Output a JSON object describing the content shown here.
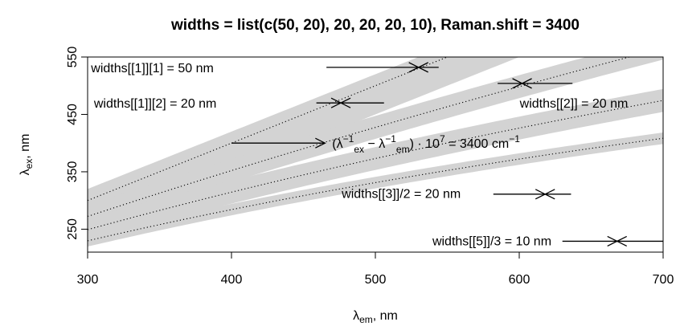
{
  "chart_data": {
    "type": "area",
    "title": "widths = list(c(50, 20), 20, 20, 20, 10), Raman.shift = 3400",
    "xlabel": {
      "main": "λ",
      "sub": "em",
      "unit": ", nm"
    },
    "ylabel": {
      "main": "λ",
      "sub": "ex",
      "unit": ", nm"
    },
    "xlim": [
      300,
      700
    ],
    "ylim": [
      210,
      550
    ],
    "x_ticks": [
      300,
      400,
      500,
      600,
      700
    ],
    "y_ticks": [
      250,
      350,
      450,
      550
    ],
    "raman_shift": 3400,
    "bands": [
      {
        "center_offset": 0,
        "lower_width": 50,
        "upper_width": 20,
        "color": "#d3d3d3"
      },
      {
        "center_offset": 3400,
        "width": 20,
        "color": "#d3d3d3"
      },
      {
        "center_offset": 6800,
        "width": 20,
        "color": "#d3d3d3"
      },
      {
        "center_offset": 10200,
        "width": 10,
        "color": "#d3d3d3"
      }
    ],
    "centerlines": [
      {
        "shift": 0,
        "style": "dotted"
      },
      {
        "shift": 3400,
        "style": "dotted"
      },
      {
        "shift": 6800,
        "style": "dotted"
      },
      {
        "shift": 10200,
        "style": "dotted"
      }
    ],
    "annotations": [
      {
        "text": "widths[[1]][1] =  50 nm",
        "x": 345,
        "y": 532,
        "anchor": "middle"
      },
      {
        "text": "widths[[1]][2] = 20 nm",
        "x": 347,
        "y": 470,
        "anchor": "middle"
      },
      {
        "text": "widths[[2]] = 20 nm",
        "x": 638,
        "y": 470,
        "anchor": "middle"
      },
      {
        "text": "widths[[3]]/2 = 20 nm",
        "x": 518,
        "y": 313,
        "anchor": "middle"
      },
      {
        "text": "widths[[5]]/3 = 10 nm",
        "x": 581,
        "y": 230,
        "anchor": "middle"
      }
    ],
    "formula": {
      "prefix": "(λ",
      "ex_sub": "ex",
      "em_sub": "em",
      "exp": "−1",
      "minus": " − λ",
      "times": ") · 10",
      "seven": "7",
      "equals": " = 3400 cm",
      "x": 470,
      "y": 400
    },
    "arrows": [
      {
        "x1": 466,
        "x2": 530,
        "y": 532
      },
      {
        "x1": 544,
        "x2": 530,
        "y": 532
      },
      {
        "x1": 459,
        "x2": 476,
        "y": 470
      },
      {
        "x1": 506,
        "x2": 476,
        "y": 470
      },
      {
        "x1": 585,
        "x2": 602,
        "y": 504
      },
      {
        "x1": 637,
        "x2": 602,
        "y": 504
      },
      {
        "x1": 400,
        "x2": 465,
        "y": 400
      },
      {
        "x1": 582,
        "x2": 618,
        "y": 311
      },
      {
        "x1": 636,
        "x2": 618,
        "y": 311
      },
      {
        "x1": 630,
        "x2": 668,
        "y": 229
      },
      {
        "x1": 700,
        "x2": 668,
        "y": 229
      }
    ],
    "grid": false,
    "legend": "none"
  }
}
